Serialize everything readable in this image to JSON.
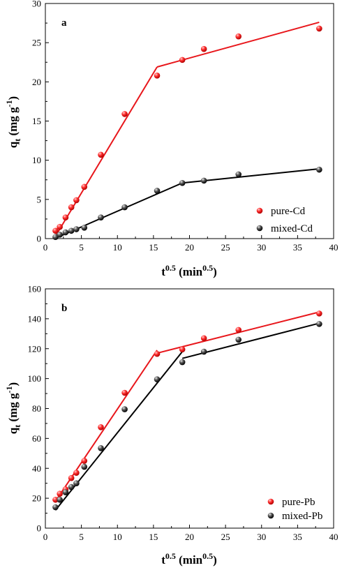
{
  "chart_data": [
    {
      "type": "scatter",
      "panel_label": "a",
      "xlabel_base": "t",
      "xlabel_exp": "0.5",
      "xlabel_unit_open": " (min",
      "xlabel_unit_exp": "0.5",
      "xlabel_unit_close": ")",
      "ylabel_base": "q",
      "ylabel_sub": "t",
      "ylabel_unit": " (mg g",
      "ylabel_unit_exp": "-1",
      "ylabel_close": ")",
      "xlim": [
        0,
        40
      ],
      "ylim": [
        0,
        30
      ],
      "xticks": [
        0,
        5,
        10,
        15,
        20,
        25,
        30,
        35,
        40
      ],
      "yticks": [
        0,
        5,
        10,
        15,
        20,
        25,
        30
      ],
      "grid": false,
      "legend": "bottom-right",
      "series": [
        {
          "name": "pure-Cd",
          "color": "#e8161b",
          "x": [
            1.4,
            2.0,
            2.8,
            3.6,
            4.3,
            5.4,
            7.7,
            11.0,
            15.5,
            19.0,
            22.0,
            26.8,
            38.0
          ],
          "y": [
            1.0,
            1.5,
            2.7,
            4.0,
            4.9,
            6.6,
            10.7,
            15.9,
            20.8,
            22.8,
            24.2,
            25.8,
            26.8
          ],
          "fit_lines": [
            {
              "x": [
                1.4,
                15.5
              ],
              "y": [
                0.3,
                21.9
              ]
            },
            {
              "x": [
                15.5,
                38.0
              ],
              "y": [
                21.9,
                27.6
              ]
            }
          ]
        },
        {
          "name": "mixed-Cd",
          "color": "#1a1a1a",
          "x": [
            1.4,
            2.0,
            2.8,
            3.6,
            4.3,
            5.4,
            7.7,
            11.0,
            15.5,
            19.0,
            22.0,
            26.8,
            38.0
          ],
          "y": [
            0.2,
            0.5,
            0.8,
            1.0,
            1.2,
            1.4,
            2.7,
            4.0,
            6.1,
            7.1,
            7.4,
            8.2,
            8.8
          ],
          "fit_lines": [
            {
              "x": [
                1.4,
                19.0
              ],
              "y": [
                0.05,
                7.1
              ]
            },
            {
              "x": [
                19.0,
                38.0
              ],
              "y": [
                7.1,
                8.9
              ]
            }
          ]
        }
      ]
    },
    {
      "type": "scatter",
      "panel_label": "b",
      "xlabel_base": "t",
      "xlabel_exp": "0.5",
      "xlabel_unit_open": " (min",
      "xlabel_unit_exp": "0.5",
      "xlabel_unit_close": ")",
      "ylabel_base": "q",
      "ylabel_sub": "t",
      "ylabel_unit": " (mg g",
      "ylabel_unit_exp": "-1",
      "ylabel_close": ")",
      "xlim": [
        0,
        40
      ],
      "ylim": [
        0,
        160
      ],
      "xticks": [
        0,
        5,
        10,
        15,
        20,
        25,
        30,
        35,
        40
      ],
      "yticks": [
        0,
        20,
        40,
        60,
        80,
        100,
        120,
        140,
        160
      ],
      "grid": false,
      "legend": "bottom-right",
      "series": [
        {
          "name": "pure-Pb",
          "color": "#e8161b",
          "x": [
            1.4,
            2.0,
            2.8,
            3.6,
            4.3,
            5.4,
            7.7,
            11.0,
            15.5,
            19.0,
            22.0,
            26.8,
            38.0
          ],
          "y": [
            19.0,
            23.0,
            26.0,
            33.5,
            37.0,
            45.0,
            67.5,
            90.5,
            116.5,
            119.5,
            127.0,
            132.5,
            143.5
          ],
          "fit_lines": [
            {
              "x": [
                1.4,
                15.5
              ],
              "y": [
                18.0,
                119.0
              ]
            },
            {
              "x": [
                15.5,
                38.0
              ],
              "y": [
                117.0,
                144.5
              ]
            }
          ]
        },
        {
          "name": "mixed-Pb",
          "color": "#1a1a1a",
          "x": [
            1.4,
            2.0,
            2.8,
            3.6,
            4.3,
            5.4,
            7.7,
            11.0,
            15.5,
            19.0,
            22.0,
            26.8,
            38.0
          ],
          "y": [
            14.0,
            19.0,
            24.0,
            27.5,
            30.0,
            41.0,
            53.5,
            79.5,
            99.5,
            111.0,
            118.0,
            126.0,
            136.5
          ],
          "fit_lines": [
            {
              "x": [
                1.4,
                19.0
              ],
              "y": [
                12.0,
                118.0
              ]
            },
            {
              "x": [
                19.0,
                38.0
              ],
              "y": [
                113.5,
                137.0
              ]
            }
          ]
        }
      ]
    }
  ]
}
